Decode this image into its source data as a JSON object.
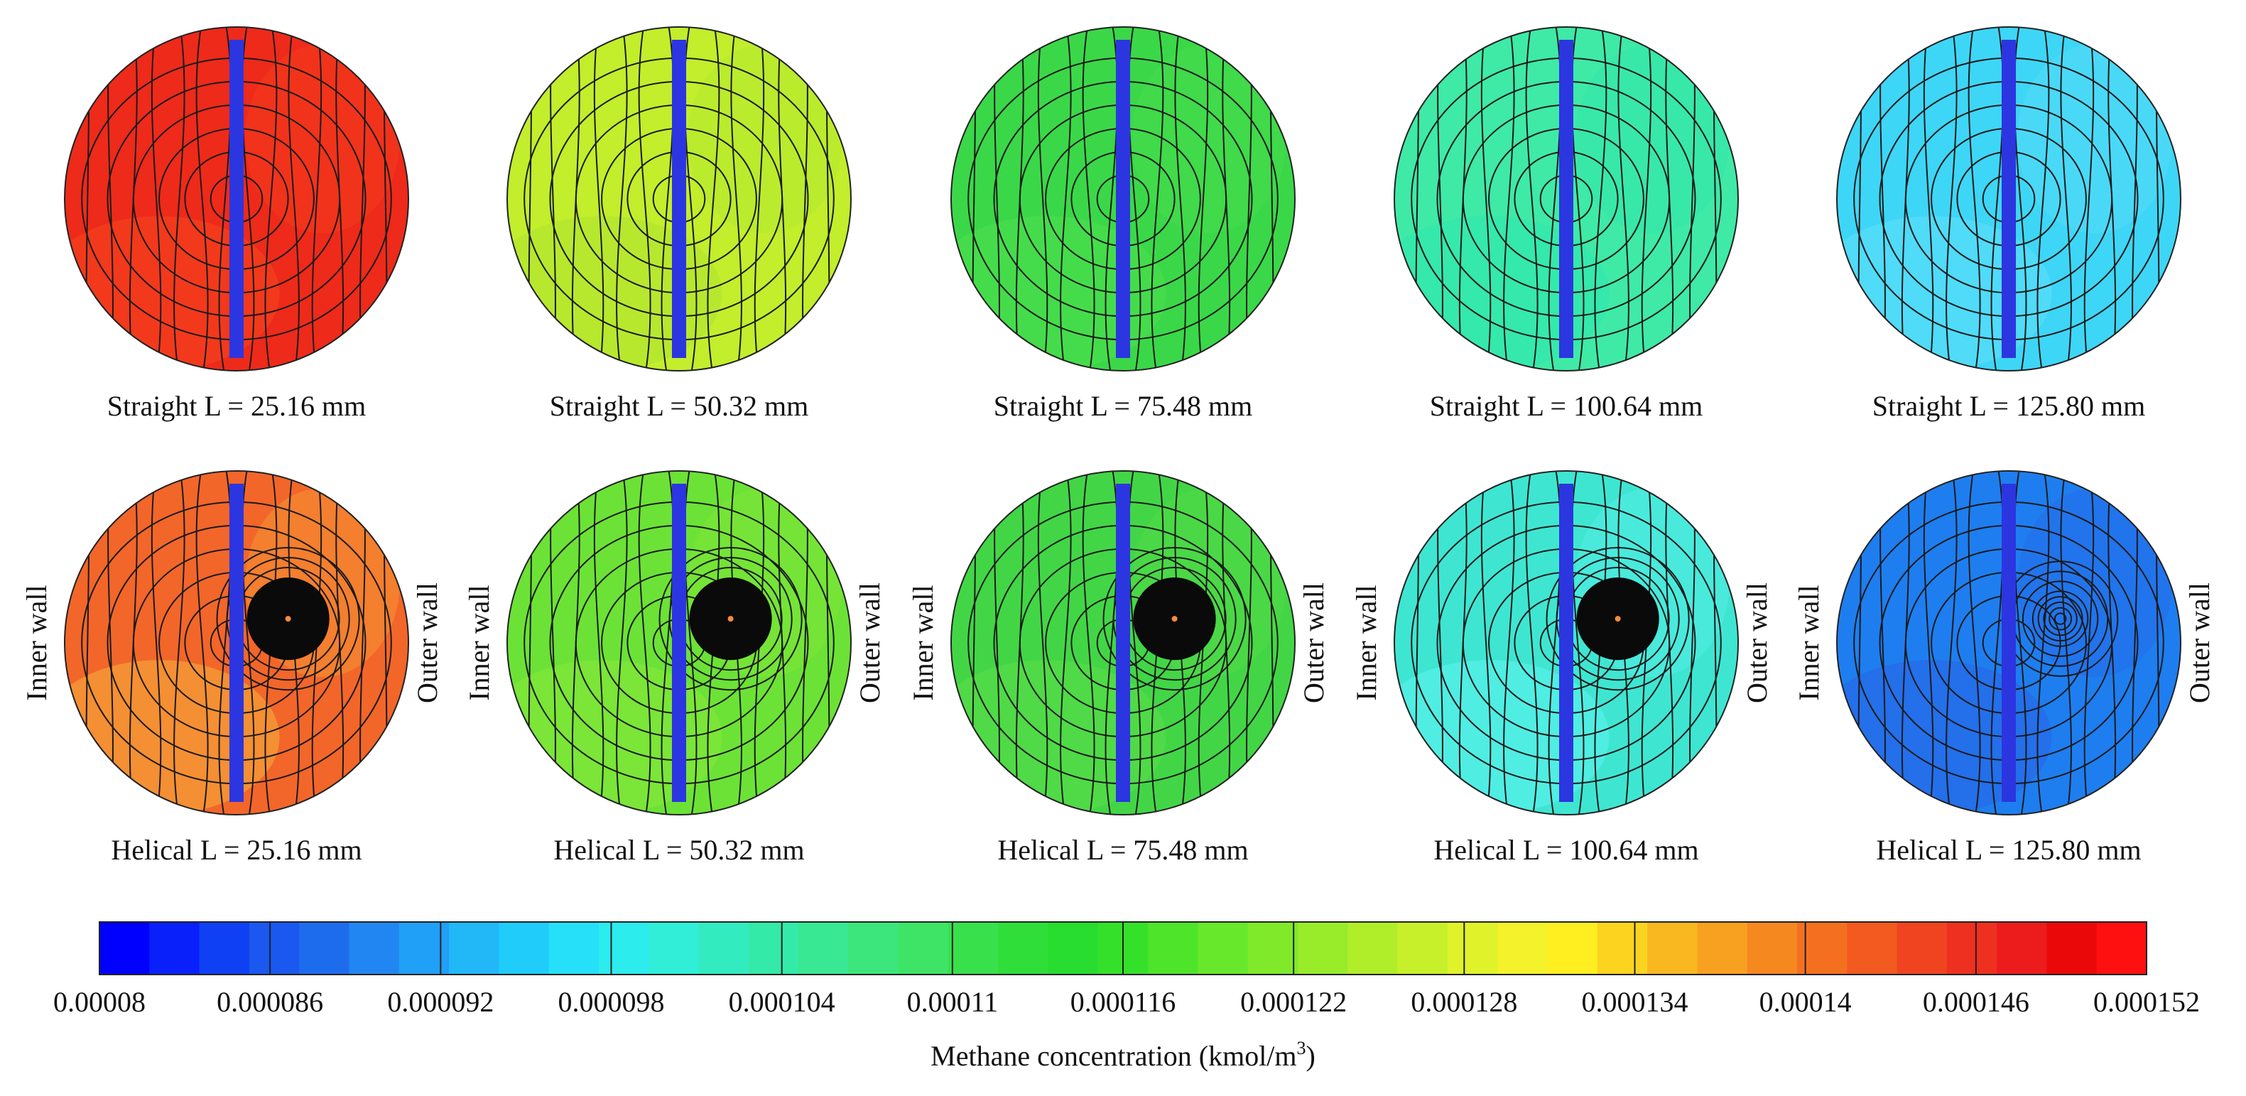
{
  "panels": [
    {
      "row": "straight",
      "label": "Straight L = 25.16 mm",
      "bg": "#ee2a1a",
      "bg2": "#f6461f",
      "vortex": false
    },
    {
      "row": "straight",
      "label": "Straight L = 50.32 mm",
      "bg": "#c2ee2c",
      "bg2": "#aee432",
      "vortex": false
    },
    {
      "row": "straight",
      "label": "Straight L = 75.48 mm",
      "bg": "#3ad848",
      "bg2": "#4ee050",
      "vortex": false
    },
    {
      "row": "straight",
      "label": "Straight L = 100.64 mm",
      "bg": "#3eeaa6",
      "bg2": "#2ee6b0",
      "vortex": false
    },
    {
      "row": "straight",
      "label": "Straight L = 125.80 mm",
      "bg": "#3ed6f6",
      "bg2": "#5ee0fa",
      "vortex": false
    },
    {
      "row": "helical",
      "label": "Helical L = 25.16 mm",
      "bg": "#f2662a",
      "bg2": "#f6b03a",
      "vortex": true,
      "inner_wall": "Inner wall",
      "outer_wall": "Outer wall"
    },
    {
      "row": "helical",
      "label": "Helical L = 50.32 mm",
      "bg": "#6ce236",
      "bg2": "#88e83a",
      "vortex": true,
      "inner_wall": "Inner wall",
      "outer_wall": "Outer wall"
    },
    {
      "row": "helical",
      "label": "Helical L = 75.48 mm",
      "bg": "#42d646",
      "bg2": "#5cde48",
      "vortex": true,
      "inner_wall": "Inner wall",
      "outer_wall": "Outer wall"
    },
    {
      "row": "helical",
      "label": "Helical L = 100.64 mm",
      "bg": "#3ee6d2",
      "bg2": "#5ef2f0",
      "vortex": true,
      "inner_wall": "Inner wall",
      "outer_wall": "Outer wall"
    },
    {
      "row": "helical",
      "label": "Helical L = 125.80 mm",
      "bg": "#1e7ef0",
      "bg2": "#2a62e6",
      "vortex": true,
      "inner_wall": "Inner wall",
      "outer_wall": "Outer wall"
    }
  ],
  "colorbar": {
    "title": "Methane concentration (kmol/m",
    "title_sup": "3",
    "title_end": ")",
    "ticks": [
      "0.00008",
      "0.000086",
      "0.000092",
      "0.000098",
      "0.000104",
      "0.00011",
      "0.000116",
      "0.000122",
      "0.000128",
      "0.000134",
      "0.00014",
      "0.000146",
      "0.000152"
    ],
    "colors": [
      "#0000ff",
      "#0a20fa",
      "#1040f4",
      "#1a58f0",
      "#1e6cee",
      "#2286f2",
      "#20a0f6",
      "#22b8f8",
      "#20ccfa",
      "#26e0fa",
      "#2cecee",
      "#30eed8",
      "#32ecc0",
      "#34eaa8",
      "#38e892",
      "#3ce67c",
      "#3ee466",
      "#38e04c",
      "#30de3a",
      "#28dc30",
      "#34e02a",
      "#4ee42a",
      "#68e82a",
      "#80ea2a",
      "#98ec2a",
      "#b0ee2a",
      "#c8f02a",
      "#e0f22a",
      "#f4f22a",
      "#ffee20",
      "#fcd420",
      "#fab820",
      "#f8a020",
      "#f68820",
      "#f47020",
      "#f25a20",
      "#f04420",
      "#ee3020",
      "#ec1c1c",
      "#ea0808",
      "#ff1010"
    ],
    "blue_bar": "#2b36e0"
  }
}
